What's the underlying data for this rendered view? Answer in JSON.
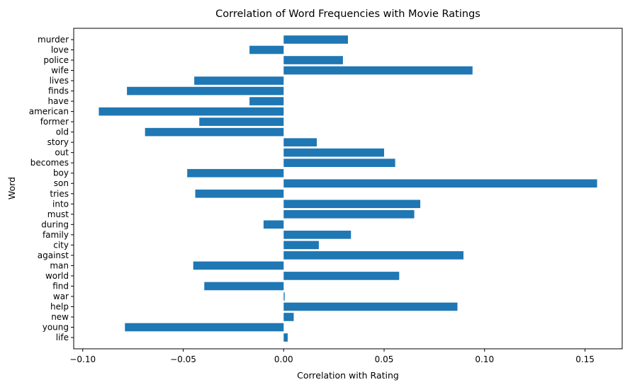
{
  "chart_data": {
    "type": "bar",
    "orientation": "horizontal",
    "title": "Correlation of Word Frequencies with Movie Ratings",
    "xlabel": "Correlation with Rating",
    "ylabel": "Word",
    "xlim": [
      -0.1045,
      0.1685
    ],
    "xticks": [
      -0.1,
      -0.05,
      0.0,
      0.05,
      0.1,
      0.15
    ],
    "xtick_labels": [
      "−0.10",
      "−0.05",
      "0.00",
      "0.05",
      "0.10",
      "0.15"
    ],
    "grid": false,
    "bar_color": "#1f77b4",
    "categories": [
      "life",
      "young",
      "new",
      "help",
      "war",
      "find",
      "world",
      "man",
      "against",
      "city",
      "family",
      "during",
      "must",
      "into",
      "tries",
      "son",
      "boy",
      "becomes",
      "out",
      "story",
      "old",
      "former",
      "american",
      "have",
      "finds",
      "lives",
      "wife",
      "police",
      "love",
      "murder"
    ],
    "values": [
      0.002,
      -0.079,
      0.005,
      0.0865,
      0.0005,
      -0.0395,
      0.0575,
      -0.045,
      0.0895,
      0.0175,
      0.0335,
      -0.01,
      0.065,
      0.068,
      -0.044,
      0.156,
      -0.048,
      0.0555,
      0.05,
      0.0165,
      -0.069,
      -0.042,
      -0.092,
      -0.017,
      -0.078,
      -0.0445,
      0.094,
      0.0295,
      -0.017,
      0.032
    ]
  }
}
